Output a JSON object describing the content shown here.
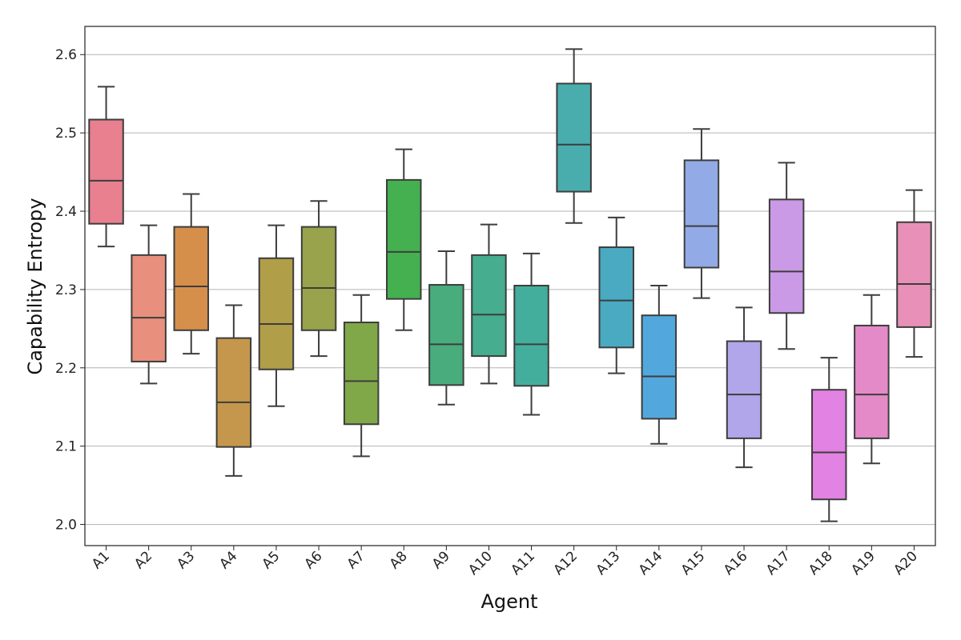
{
  "chart_data": {
    "type": "box",
    "title": "",
    "xlabel": "Agent",
    "ylabel": "Capability Entropy",
    "ylim": [
      1.973,
      2.636
    ],
    "yticks": [
      "2.0",
      "2.1",
      "2.2",
      "2.3",
      "2.4",
      "2.5",
      "2.6"
    ],
    "grid": "horizontal",
    "categories": [
      "A1",
      "A2",
      "A3",
      "A4",
      "A5",
      "A6",
      "A7",
      "A8",
      "A9",
      "A10",
      "A11",
      "A12",
      "A13",
      "A14",
      "A15",
      "A16",
      "A17",
      "A18",
      "A19",
      "A20"
    ],
    "boxes": [
      {
        "category": "A1",
        "whisker_low": 2.355,
        "q1": 2.384,
        "median": 2.439,
        "q3": 2.517,
        "whisker_high": 2.559,
        "color": "#e8808f"
      },
      {
        "category": "A2",
        "whisker_low": 2.18,
        "q1": 2.208,
        "median": 2.264,
        "q3": 2.344,
        "whisker_high": 2.382,
        "color": "#e8907d"
      },
      {
        "category": "A3",
        "whisker_low": 2.218,
        "q1": 2.248,
        "median": 2.304,
        "q3": 2.38,
        "whisker_high": 2.422,
        "color": "#d68f4a"
      },
      {
        "category": "A4",
        "whisker_low": 2.062,
        "q1": 2.099,
        "median": 2.156,
        "q3": 2.238,
        "whisker_high": 2.28,
        "color": "#c4974c"
      },
      {
        "category": "A5",
        "whisker_low": 2.151,
        "q1": 2.198,
        "median": 2.256,
        "q3": 2.34,
        "whisker_high": 2.382,
        "color": "#b09e48"
      },
      {
        "category": "A6",
        "whisker_low": 2.215,
        "q1": 2.248,
        "median": 2.302,
        "q3": 2.38,
        "whisker_high": 2.413,
        "color": "#98a34b"
      },
      {
        "category": "A7",
        "whisker_low": 2.087,
        "q1": 2.128,
        "median": 2.183,
        "q3": 2.258,
        "whisker_high": 2.293,
        "color": "#80a848"
      },
      {
        "category": "A8",
        "whisker_low": 2.248,
        "q1": 2.288,
        "median": 2.348,
        "q3": 2.44,
        "whisker_high": 2.479,
        "color": "#44b04f"
      },
      {
        "category": "A9",
        "whisker_low": 2.153,
        "q1": 2.178,
        "median": 2.23,
        "q3": 2.306,
        "whisker_high": 2.349,
        "color": "#48ac7c"
      },
      {
        "category": "A10",
        "whisker_low": 2.18,
        "q1": 2.215,
        "median": 2.268,
        "q3": 2.344,
        "whisker_high": 2.383,
        "color": "#46ad8f"
      },
      {
        "category": "A11",
        "whisker_low": 2.14,
        "q1": 2.177,
        "median": 2.23,
        "q3": 2.305,
        "whisker_high": 2.346,
        "color": "#44ae9c"
      },
      {
        "category": "A12",
        "whisker_low": 2.385,
        "q1": 2.425,
        "median": 2.485,
        "q3": 2.563,
        "whisker_high": 2.607,
        "color": "#4aadad"
      },
      {
        "category": "A13",
        "whisker_low": 2.193,
        "q1": 2.226,
        "median": 2.286,
        "q3": 2.354,
        "whisker_high": 2.392,
        "color": "#4aaac2"
      },
      {
        "category": "A14",
        "whisker_low": 2.103,
        "q1": 2.135,
        "median": 2.189,
        "q3": 2.267,
        "whisker_high": 2.305,
        "color": "#52a8dc"
      },
      {
        "category": "A15",
        "whisker_low": 2.289,
        "q1": 2.328,
        "median": 2.381,
        "q3": 2.465,
        "whisker_high": 2.505,
        "color": "#92aae6"
      },
      {
        "category": "A16",
        "whisker_low": 2.073,
        "q1": 2.11,
        "median": 2.166,
        "q3": 2.234,
        "whisker_high": 2.277,
        "color": "#b2a6ea"
      },
      {
        "category": "A17",
        "whisker_low": 2.224,
        "q1": 2.27,
        "median": 2.323,
        "q3": 2.415,
        "whisker_high": 2.462,
        "color": "#ca9ae6"
      },
      {
        "category": "A18",
        "whisker_low": 2.004,
        "q1": 2.032,
        "median": 2.092,
        "q3": 2.172,
        "whisker_high": 2.213,
        "color": "#e282e2"
      },
      {
        "category": "A19",
        "whisker_low": 2.078,
        "q1": 2.11,
        "median": 2.166,
        "q3": 2.254,
        "whisker_high": 2.293,
        "color": "#e48ac8"
      },
      {
        "category": "A20",
        "whisker_low": 2.214,
        "q1": 2.252,
        "median": 2.307,
        "q3": 2.386,
        "whisker_high": 2.427,
        "color": "#e890b8"
      }
    ]
  }
}
